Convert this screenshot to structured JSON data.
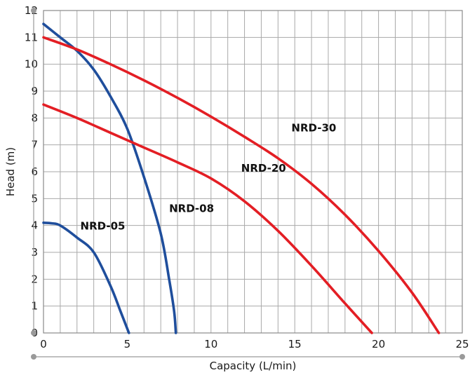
{
  "chart_data": {
    "type": "line",
    "xlabel": "Capacity (L/min)",
    "ylabel": "Head (m)",
    "xlim": [
      0,
      25
    ],
    "ylim": [
      0,
      12
    ],
    "x_ticks": [
      "0",
      "5",
      "10",
      "15",
      "20",
      "25"
    ],
    "y_ticks": [
      "0",
      "1",
      "2",
      "3",
      "4",
      "5",
      "6",
      "7",
      "8",
      "9",
      "10",
      "11",
      "12"
    ],
    "grid": true,
    "series": [
      {
        "name": "NRD-05",
        "color": "#1f4e9c",
        "points": [
          [
            0,
            4.1
          ],
          [
            0.5,
            4.08
          ],
          [
            1,
            4.0
          ],
          [
            2,
            3.55
          ],
          [
            3,
            3.0
          ],
          [
            4,
            1.75
          ],
          [
            4.6,
            0.8
          ],
          [
            5.1,
            0
          ]
        ]
      },
      {
        "name": "NRD-08",
        "color": "#1f4e9c",
        "points": [
          [
            0,
            11.5
          ],
          [
            1,
            11.0
          ],
          [
            2,
            10.5
          ],
          [
            3,
            9.8
          ],
          [
            4,
            8.8
          ],
          [
            5,
            7.6
          ],
          [
            6,
            5.8
          ],
          [
            7,
            3.7
          ],
          [
            7.5,
            2.0
          ],
          [
            7.8,
            0.8
          ],
          [
            7.9,
            0
          ]
        ]
      },
      {
        "name": "NRD-20",
        "color": "#e31e24",
        "points": [
          [
            0,
            8.5
          ],
          [
            2,
            8.0
          ],
          [
            4,
            7.45
          ],
          [
            6,
            6.9
          ],
          [
            8,
            6.35
          ],
          [
            10,
            5.75
          ],
          [
            12,
            4.9
          ],
          [
            14,
            3.8
          ],
          [
            16,
            2.5
          ],
          [
            18,
            1.1
          ],
          [
            19.6,
            0
          ]
        ]
      },
      {
        "name": "NRD-30",
        "color": "#e31e24",
        "points": [
          [
            0,
            11.0
          ],
          [
            2,
            10.55
          ],
          [
            4,
            10.0
          ],
          [
            6,
            9.4
          ],
          [
            8,
            8.75
          ],
          [
            10,
            8.05
          ],
          [
            12,
            7.3
          ],
          [
            14,
            6.5
          ],
          [
            16,
            5.55
          ],
          [
            18,
            4.4
          ],
          [
            20,
            3.05
          ],
          [
            22,
            1.5
          ],
          [
            23.6,
            0
          ]
        ]
      }
    ],
    "annotations": [
      {
        "text": "NRD-05",
        "x": 2.2,
        "y": 3.85
      },
      {
        "text": "NRD-08",
        "x": 7.5,
        "y": 4.5
      },
      {
        "text": "NRD-20",
        "x": 11.8,
        "y": 6.0
      },
      {
        "text": "NRD-30",
        "x": 14.8,
        "y": 7.5
      }
    ]
  }
}
